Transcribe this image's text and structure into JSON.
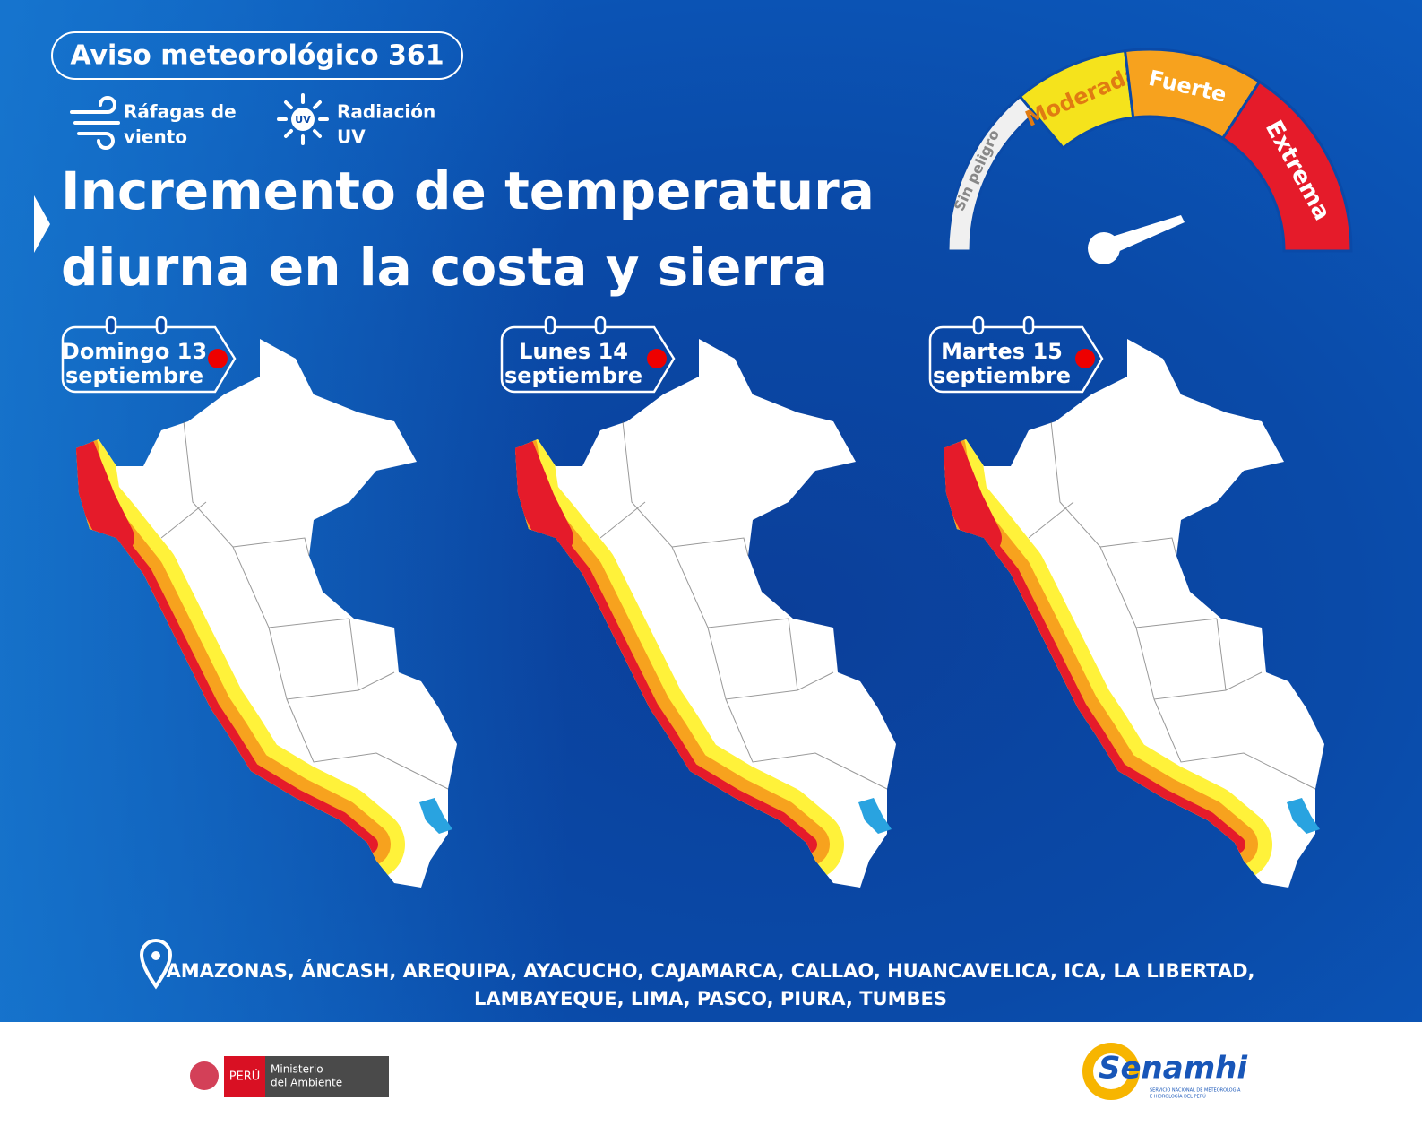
{
  "header": {
    "badge": "Aviso meteorológico 361",
    "hazards": [
      {
        "label": [
          "Ráfagas de",
          "viento"
        ]
      },
      {
        "icon_text": "UV",
        "label": [
          "Radiación",
          "UV"
        ]
      }
    ],
    "title": [
      "Incremento de temperatura",
      "diurna en la costa y sierra"
    ]
  },
  "gauge": {
    "levels": [
      "Sin peligro",
      "Moderada",
      "Fuerte",
      "Extrema"
    ]
  },
  "days": [
    {
      "day": "Domingo 13",
      "month": "septiembre"
    },
    {
      "day": "Lunes 14",
      "month": "septiembre"
    },
    {
      "day": "Martes 15",
      "month": "septiembre"
    }
  ],
  "regions": [
    "AMAZONAS, ÁNCASH, AREQUIPA, AYACUCHO, CAJAMARCA, CALLAO, HUANCAVELICA, ICA, LA LIBERTAD,",
    "LAMBAYEQUE, LIMA, PASCO, PIURA, TUMBES"
  ],
  "footer": {
    "country": "PERÚ",
    "ministry": [
      "Ministerio",
      "del Ambiente"
    ],
    "agency": "Senamhi",
    "agency_full": [
      "SERVICIO NACIONAL DE METEOROLOGÍA",
      "E HIDROLOGÍA DEL PERÚ"
    ]
  }
}
